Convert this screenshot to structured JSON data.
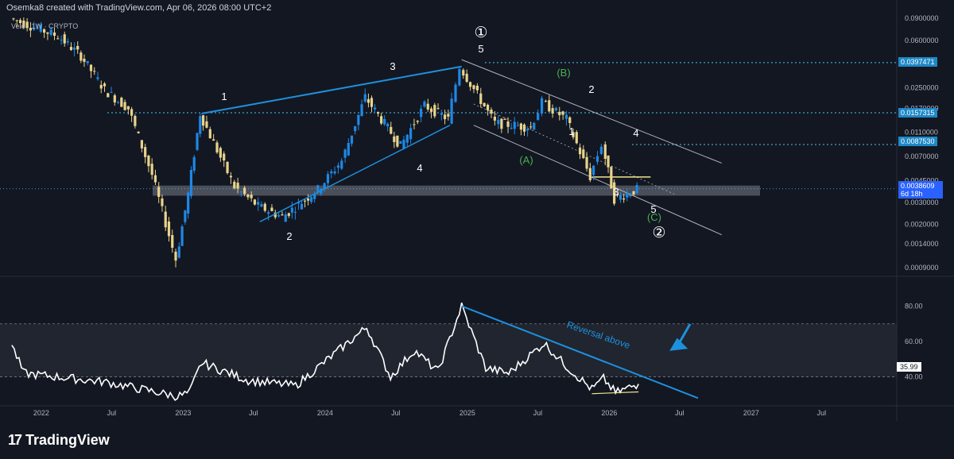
{
  "header": {
    "text": "Osemka8 created with TradingView.com, Apr 06, 2026 08:00 UTC+2"
  },
  "symbol": {
    "text": "Velo · 1W · CRYPTO"
  },
  "logo": {
    "mark": "17",
    "text": "TradingView"
  },
  "colors": {
    "background": "#131722",
    "candle_up": "#1e88e5",
    "candle_down": "#e8d48b",
    "trendline": "#1e90dc",
    "channel": "#b2b5be",
    "level_dotted": "#4fc3f7",
    "support_zone": "#787b86",
    "oscillator": "#ffffff",
    "wave_label_green": "#4caf50",
    "current_price": "#2962ff"
  },
  "price_axis": {
    "ticks": [
      "0.0900000",
      "0.0600000",
      "0.0250000",
      "0.0170000",
      "0.0110000",
      "0.0070000",
      "0.0045000",
      "0.0030000",
      "0.0020000",
      "0.0014000",
      "0.0009000"
    ],
    "levels": [
      {
        "label": "0.0397471",
        "value": 0.0397471
      },
      {
        "label": "0.0157315",
        "value": 0.0157315
      },
      {
        "label": "0.0087530",
        "value": 0.008753
      }
    ],
    "current": {
      "label": "0.0038609",
      "countdown": "6d 18h",
      "value": 0.0038609
    }
  },
  "osc_axis": {
    "ticks": [
      "80.00",
      "60.00",
      "40.00"
    ],
    "current": "35.99",
    "annotation": "Reversal above"
  },
  "time_axis": {
    "labels": [
      "2022",
      "Jul",
      "2023",
      "Jul",
      "2024",
      "Jul",
      "2025",
      "Jul",
      "2026",
      "Jul",
      "2027",
      "Jul"
    ]
  },
  "wave_labels": {
    "impulse_1": [
      "1",
      "2",
      "3",
      "4",
      "5"
    ],
    "correction": [
      "(A)",
      "(B)",
      "(C)"
    ],
    "sub_c": [
      "1",
      "2",
      "3",
      "4",
      "5"
    ],
    "degree": [
      "①",
      "②"
    ]
  },
  "chart_data": {
    "type": "candlestick",
    "title": "Velo · 1W · CRYPTO",
    "scale": "log",
    "price_range": [
      0.0008,
      0.1
    ],
    "time_range": [
      "2021-10",
      "2027-12"
    ],
    "price_path": [
      {
        "date": "2021-10",
        "price": 0.09
      },
      {
        "date": "2022-02",
        "price": 0.065
      },
      {
        "date": "2022-04",
        "price": 0.045
      },
      {
        "date": "2022-06",
        "price": 0.024
      },
      {
        "date": "2022-08",
        "price": 0.017
      },
      {
        "date": "2022-10",
        "price": 0.005
      },
      {
        "date": "2022-12",
        "price": 0.00105
      },
      {
        "date": "2023-01",
        "price": 0.0035
      },
      {
        "date": "2023-02",
        "price": 0.0155
      },
      {
        "date": "2023-05",
        "price": 0.004
      },
      {
        "date": "2023-07",
        "price": 0.0028
      },
      {
        "date": "2023-09",
        "price": 0.0023
      },
      {
        "date": "2023-12",
        "price": 0.0038
      },
      {
        "date": "2024-02",
        "price": 0.0065
      },
      {
        "date": "2024-04",
        "price": 0.021
      },
      {
        "date": "2024-07",
        "price": 0.0085
      },
      {
        "date": "2024-09",
        "price": 0.018
      },
      {
        "date": "2024-11",
        "price": 0.014
      },
      {
        "date": "2024-12",
        "price": 0.037
      },
      {
        "date": "2025-03",
        "price": 0.013
      },
      {
        "date": "2025-06",
        "price": 0.012
      },
      {
        "date": "2025-07",
        "price": 0.019
      },
      {
        "date": "2025-09",
        "price": 0.014
      },
      {
        "date": "2025-11",
        "price": 0.0048
      },
      {
        "date": "2025-12",
        "price": 0.0088
      },
      {
        "date": "2026-01",
        "price": 0.0032
      },
      {
        "date": "2026-03",
        "price": 0.0038
      }
    ],
    "oscillator": {
      "range": [
        25,
        95
      ],
      "zone": [
        40,
        70
      ],
      "points": [
        {
          "date": "2021-10",
          "value": 58
        },
        {
          "date": "2021-11",
          "value": 42
        },
        {
          "date": "2022-06",
          "value": 37
        },
        {
          "date": "2022-12",
          "value": 29
        },
        {
          "date": "2023-01",
          "value": 31
        },
        {
          "date": "2023-02",
          "value": 48
        },
        {
          "date": "2023-06",
          "value": 38
        },
        {
          "date": "2023-10",
          "value": 35
        },
        {
          "date": "2024-04",
          "value": 68
        },
        {
          "date": "2024-06",
          "value": 40
        },
        {
          "date": "2024-08",
          "value": 55
        },
        {
          "date": "2024-10",
          "value": 43
        },
        {
          "date": "2024-12",
          "value": 80
        },
        {
          "date": "2025-02",
          "value": 45
        },
        {
          "date": "2025-04",
          "value": 42
        },
        {
          "date": "2025-07",
          "value": 59
        },
        {
          "date": "2025-09",
          "value": 45
        },
        {
          "date": "2025-11",
          "value": 33
        },
        {
          "date": "2025-12",
          "value": 39
        },
        {
          "date": "2026-01",
          "value": 31
        },
        {
          "date": "2026-03",
          "value": 36
        }
      ]
    }
  }
}
